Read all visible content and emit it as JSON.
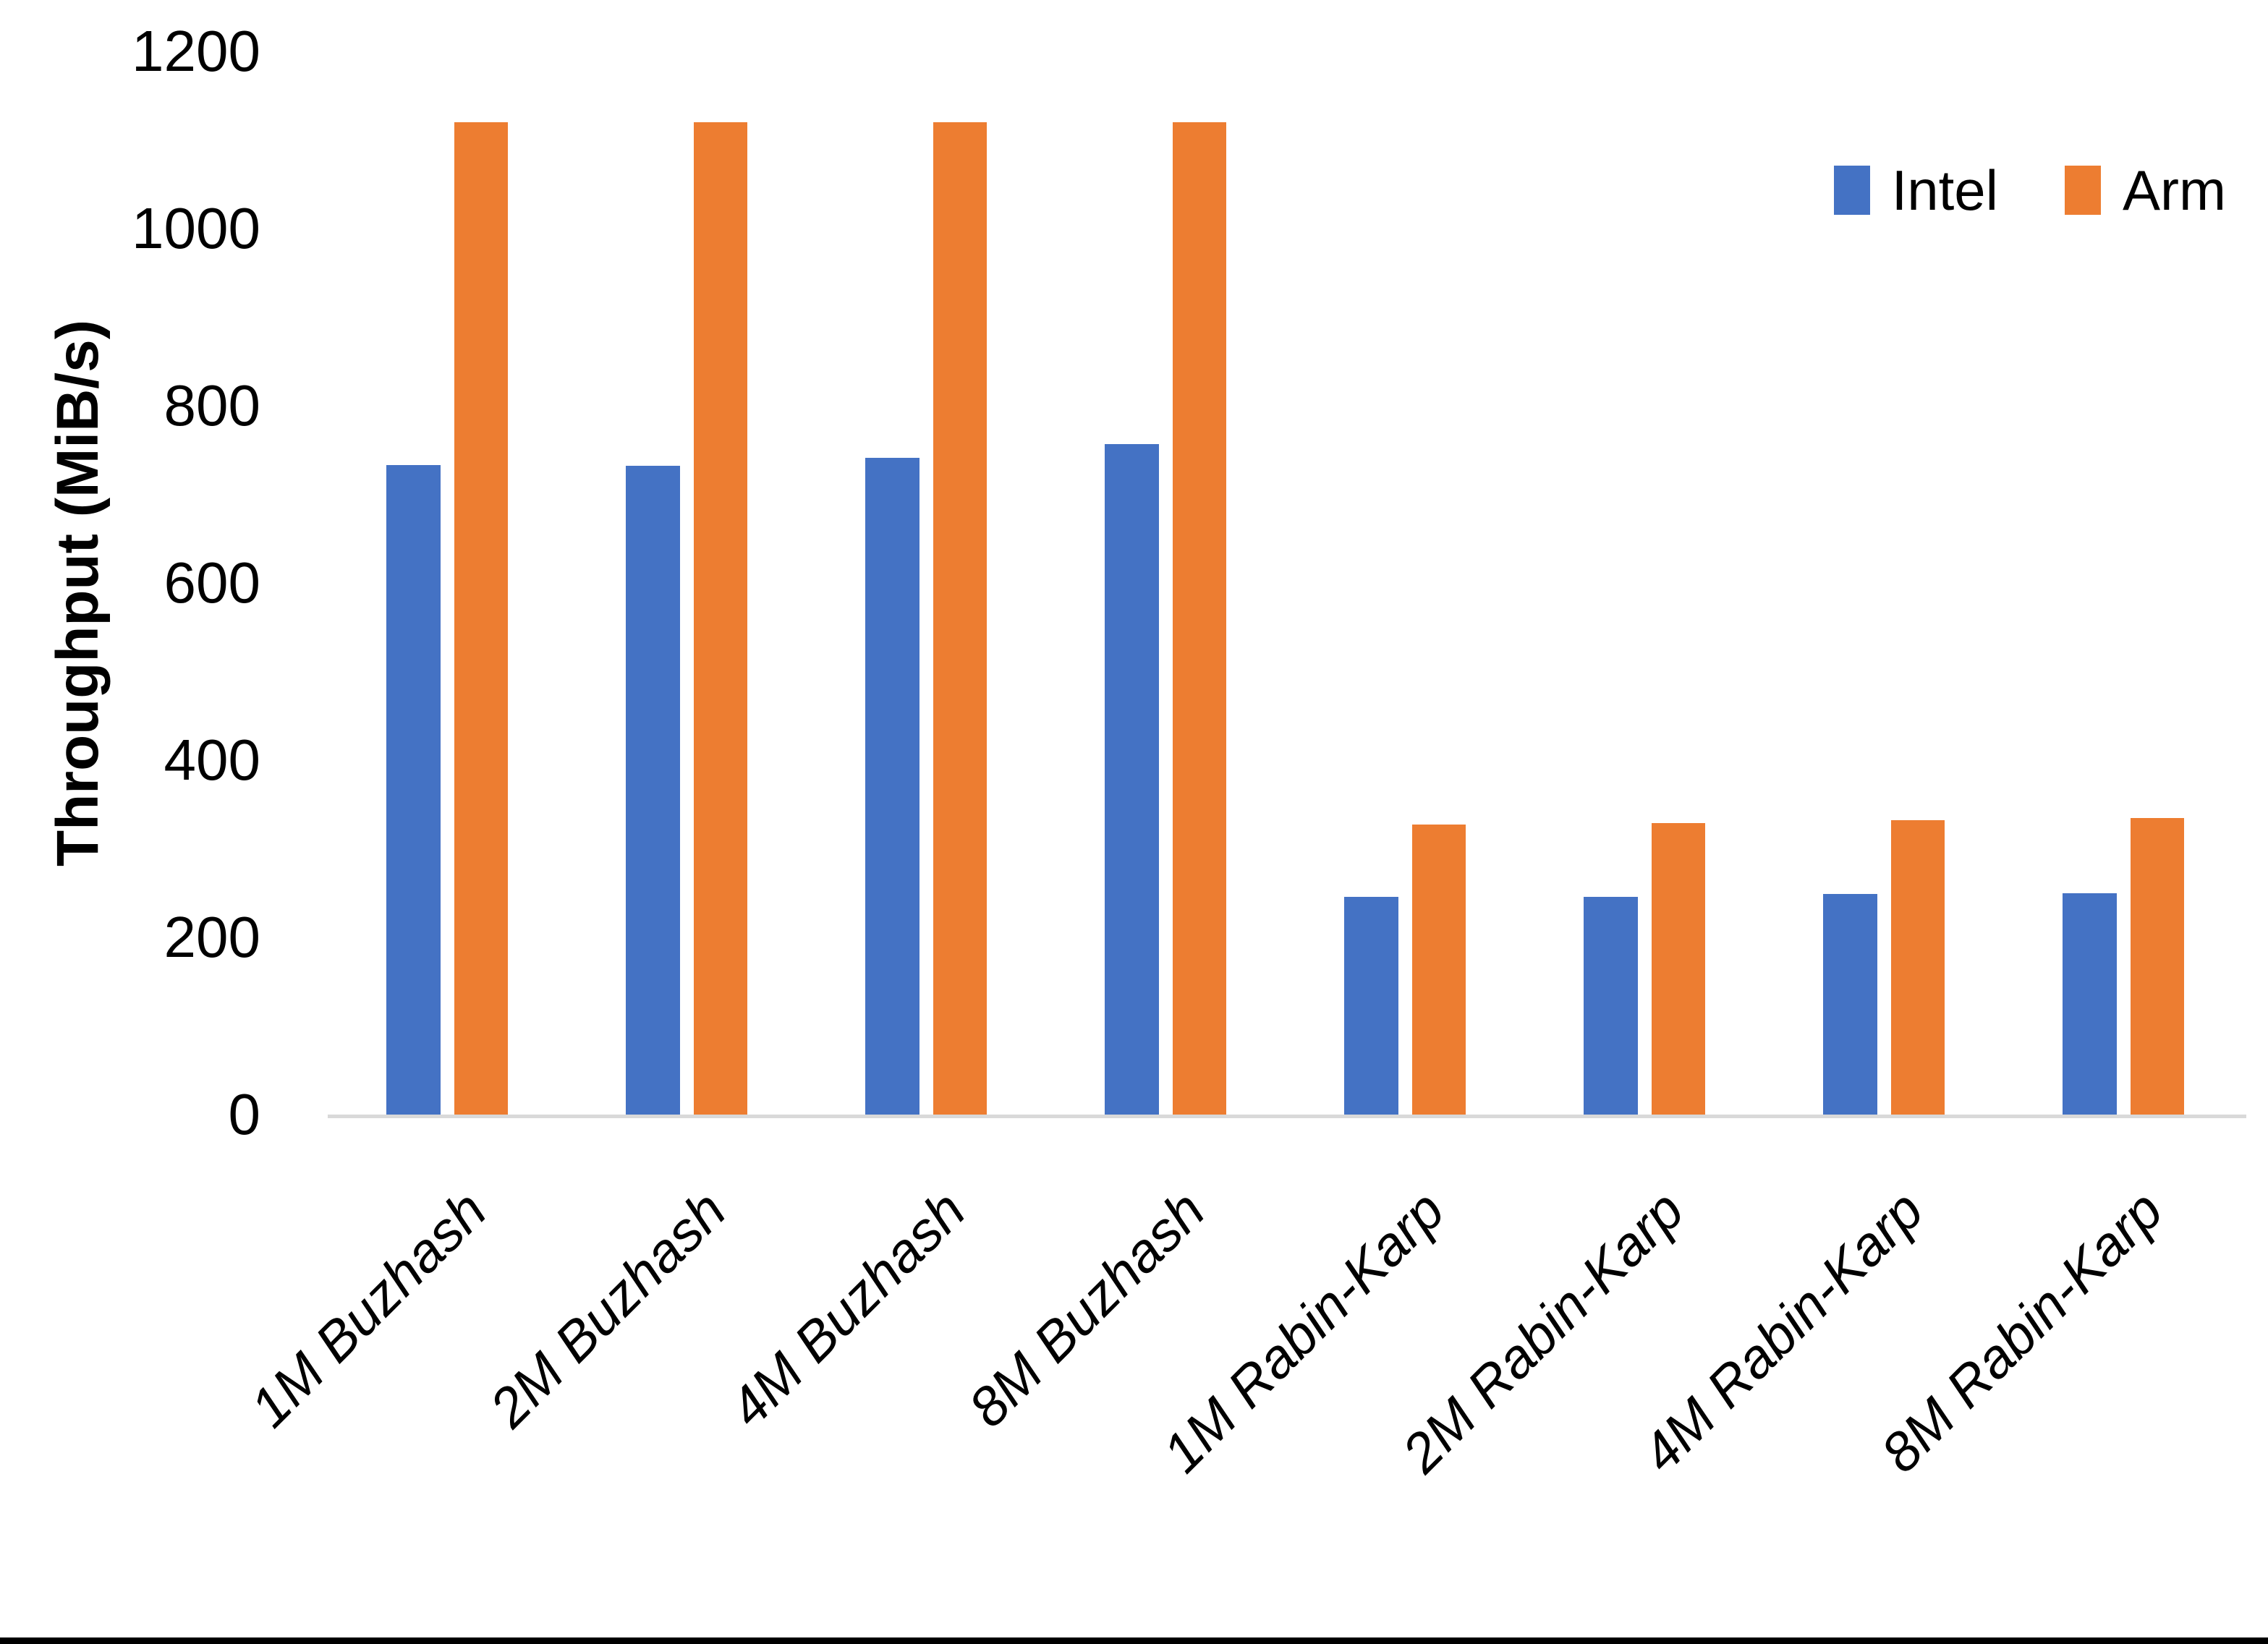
{
  "chart_data": {
    "type": "bar",
    "title": "",
    "xlabel": "",
    "ylabel": "Throughput (MiB/s)",
    "ylim": [
      0,
      1200
    ],
    "yticks": [
      0,
      200,
      400,
      600,
      800,
      1000,
      1200
    ],
    "grid": false,
    "legend_position": "top-right",
    "categories": [
      "1M Buzhash",
      "2M Buzhash",
      "4M Buzhash",
      "8M Buzhash",
      "1M Rabin-Karp",
      "2M Rabin-Karp",
      "4M Rabin-Karp",
      "8M Rabin-Karp"
    ],
    "series": [
      {
        "name": "Intel",
        "color": "#4472C4",
        "values": [
          733,
          732,
          741,
          757,
          246,
          246,
          249,
          250
        ]
      },
      {
        "name": "Arm",
        "color": "#ED7D31",
        "values": [
          1120,
          1120,
          1120,
          1120,
          327,
          329,
          332,
          335
        ]
      }
    ]
  },
  "colors": {
    "axis_line": "#D9D9D9",
    "text": "#000000",
    "background": "#FFFFFF",
    "bottom_border": "#000000"
  }
}
